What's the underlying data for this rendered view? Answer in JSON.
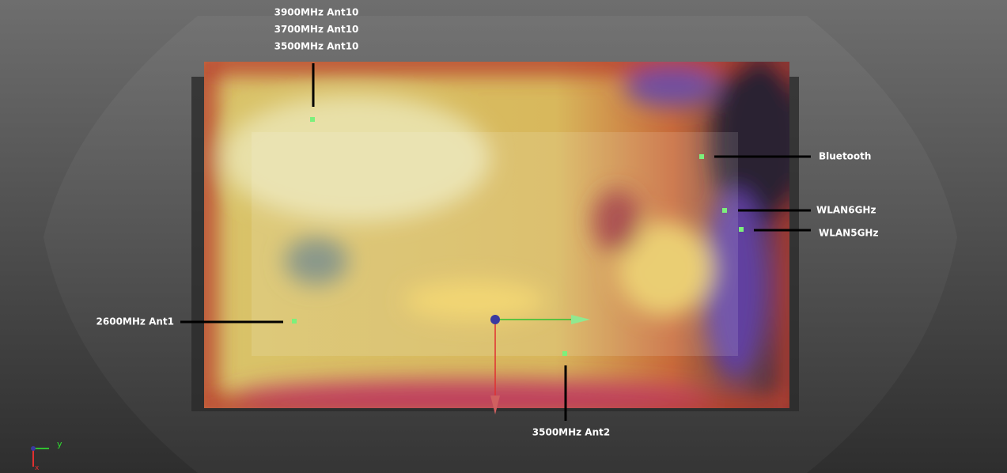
{
  "annotations": [
    {
      "labels": [
        "3900MHz Ant10",
        "3700MHz Ant10",
        "3500MHz Ant10"
      ]
    },
    {
      "labels": [
        "Bluetooth"
      ]
    },
    {
      "labels": [
        "WLAN6GHz"
      ]
    },
    {
      "labels": [
        "WLAN5GHz"
      ]
    },
    {
      "labels": [
        "2600MHz Ant1"
      ]
    },
    {
      "labels": [
        "3500MHz Ant2"
      ]
    }
  ],
  "axes": {
    "y": "y",
    "x": "x"
  }
}
